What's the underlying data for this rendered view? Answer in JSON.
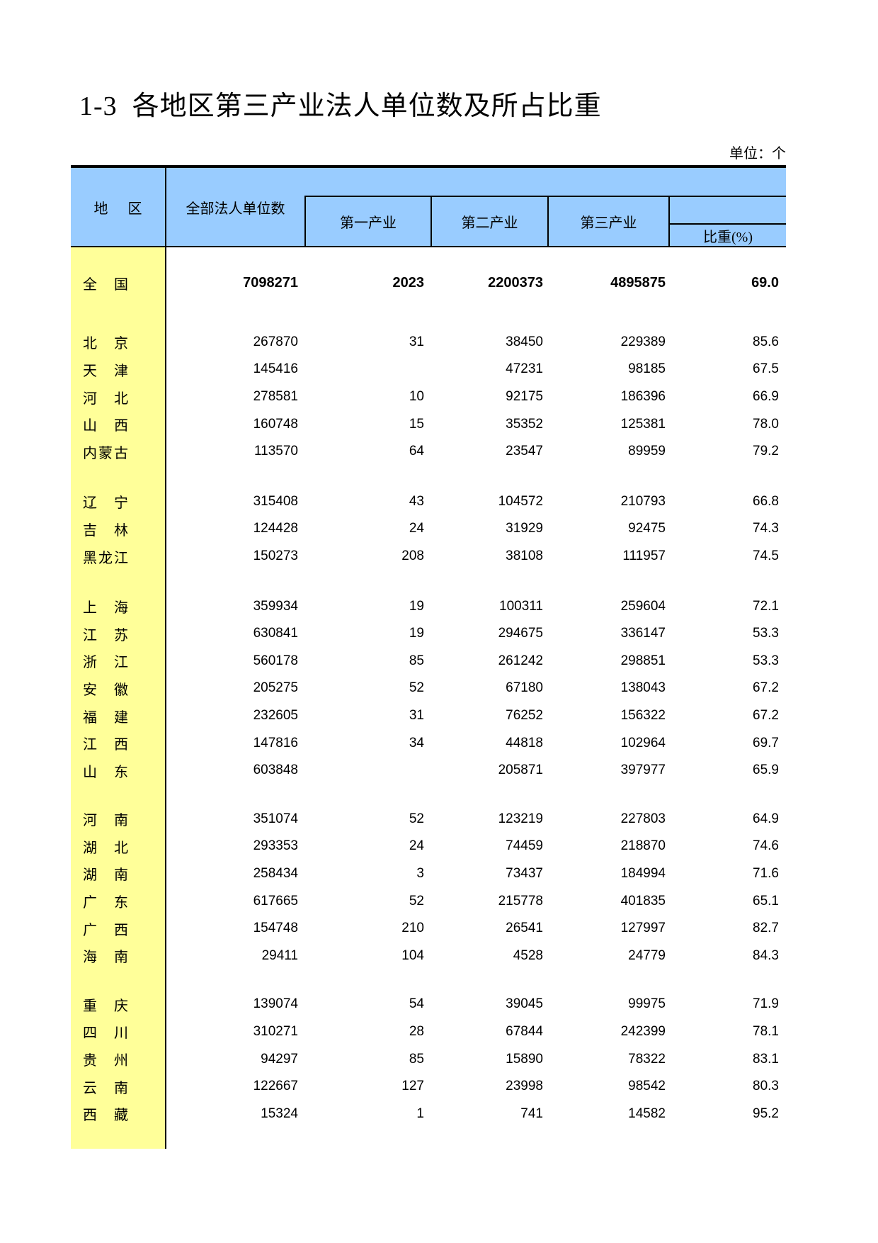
{
  "page": {
    "title": "1-3  各地区第三产业法人单位数及所占比重",
    "unit_note": "单位：个"
  },
  "table": {
    "headers": {
      "region": "地区",
      "total": "全部法人单位数",
      "primary": "第一产业",
      "secondary": "第二产业",
      "tertiary": "第三产业",
      "share": "比重(%)"
    },
    "groups": [
      {
        "rows": [
          {
            "region": "全国",
            "bold": true,
            "values": [
              "7098271",
              "2023",
              "2200373",
              "4895875",
              "69.0"
            ]
          }
        ]
      },
      {
        "rows": [
          {
            "region": "北京",
            "values": [
              "267870",
              "31",
              "38450",
              "229389",
              "85.6"
            ]
          },
          {
            "region": "天津",
            "values": [
              "145416",
              "",
              "47231",
              "98185",
              "67.5"
            ]
          },
          {
            "region": "河北",
            "values": [
              "278581",
              "10",
              "92175",
              "186396",
              "66.9"
            ]
          },
          {
            "region": "山西",
            "values": [
              "160748",
              "15",
              "35352",
              "125381",
              "78.0"
            ]
          },
          {
            "region": "内蒙古",
            "values": [
              "113570",
              "64",
              "23547",
              "89959",
              "79.2"
            ]
          }
        ]
      },
      {
        "rows": [
          {
            "region": "辽宁",
            "values": [
              "315408",
              "43",
              "104572",
              "210793",
              "66.8"
            ]
          },
          {
            "region": "吉林",
            "values": [
              "124428",
              "24",
              "31929",
              "92475",
              "74.3"
            ]
          },
          {
            "region": "黑龙江",
            "values": [
              "150273",
              "208",
              "38108",
              "111957",
              "74.5"
            ]
          }
        ]
      },
      {
        "rows": [
          {
            "region": "上海",
            "values": [
              "359934",
              "19",
              "100311",
              "259604",
              "72.1"
            ]
          },
          {
            "region": "江苏",
            "values": [
              "630841",
              "19",
              "294675",
              "336147",
              "53.3"
            ]
          },
          {
            "region": "浙江",
            "values": [
              "560178",
              "85",
              "261242",
              "298851",
              "53.3"
            ]
          },
          {
            "region": "安徽",
            "values": [
              "205275",
              "52",
              "67180",
              "138043",
              "67.2"
            ]
          },
          {
            "region": "福建",
            "values": [
              "232605",
              "31",
              "76252",
              "156322",
              "67.2"
            ]
          },
          {
            "region": "江西",
            "values": [
              "147816",
              "34",
              "44818",
              "102964",
              "69.7"
            ]
          },
          {
            "region": "山东",
            "values": [
              "603848",
              "",
              "205871",
              "397977",
              "65.9"
            ]
          }
        ]
      },
      {
        "rows": [
          {
            "region": "河南",
            "values": [
              "351074",
              "52",
              "123219",
              "227803",
              "64.9"
            ]
          },
          {
            "region": "湖北",
            "values": [
              "293353",
              "24",
              "74459",
              "218870",
              "74.6"
            ]
          },
          {
            "region": "湖南",
            "values": [
              "258434",
              "3",
              "73437",
              "184994",
              "71.6"
            ]
          },
          {
            "region": "广东",
            "values": [
              "617665",
              "52",
              "215778",
              "401835",
              "65.1"
            ]
          },
          {
            "region": "广西",
            "values": [
              "154748",
              "210",
              "26541",
              "127997",
              "82.7"
            ]
          },
          {
            "region": "海南",
            "values": [
              "29411",
              "104",
              "4528",
              "24779",
              "84.3"
            ]
          }
        ]
      },
      {
        "rows": [
          {
            "region": "重庆",
            "values": [
              "139074",
              "54",
              "39045",
              "99975",
              "71.9"
            ]
          },
          {
            "region": "四川",
            "values": [
              "310271",
              "28",
              "67844",
              "242399",
              "78.1"
            ]
          },
          {
            "region": "贵州",
            "values": [
              "94297",
              "85",
              "15890",
              "78322",
              "83.1"
            ]
          },
          {
            "region": "云南",
            "values": [
              "122667",
              "127",
              "23998",
              "98542",
              "80.3"
            ]
          },
          {
            "region": "西藏",
            "values": [
              "15324",
              "1",
              "741",
              "14582",
              "95.2"
            ]
          }
        ]
      }
    ]
  }
}
